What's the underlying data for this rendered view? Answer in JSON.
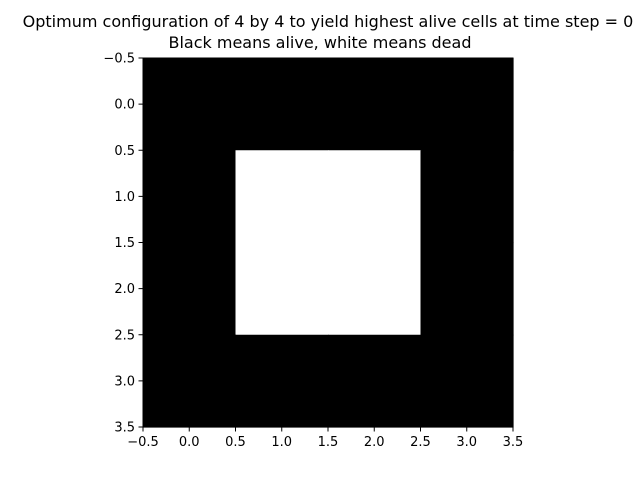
{
  "chart_data": {
    "type": "heatmap",
    "title_lines": [
      "Optimum configuration of 4 by 4 to yield highest alive cells at time step = 0",
      "Black means alive, white means dead"
    ],
    "xlabel": "",
    "ylabel": "",
    "xlim": [
      -0.5,
      3.5
    ],
    "ylim": [
      3.5,
      -0.5
    ],
    "y_axis_inverted": true,
    "x_ticks": [
      -0.5,
      0.0,
      0.5,
      1.0,
      1.5,
      2.0,
      2.5,
      3.0,
      3.5
    ],
    "x_tick_labels": [
      "−0.5",
      "0.0",
      "0.5",
      "1.0",
      "1.5",
      "2.0",
      "2.5",
      "3.0",
      "3.5"
    ],
    "y_ticks": [
      -0.5,
      0.0,
      0.5,
      1.0,
      1.5,
      2.0,
      2.5,
      3.0,
      3.5
    ],
    "y_tick_labels": [
      "−0.5",
      "0.0",
      "0.5",
      "1.0",
      "1.5",
      "2.0",
      "2.5",
      "3.0",
      "3.5"
    ],
    "grid": false,
    "colormap": {
      "alive": "#000000",
      "dead": "#ffffff"
    },
    "cells_legend": "1 = alive (black), 0 = dead (white)",
    "cells": [
      [
        1,
        1,
        1,
        1
      ],
      [
        1,
        0,
        0,
        1
      ],
      [
        1,
        0,
        0,
        1
      ],
      [
        1,
        1,
        1,
        1
      ]
    ]
  }
}
